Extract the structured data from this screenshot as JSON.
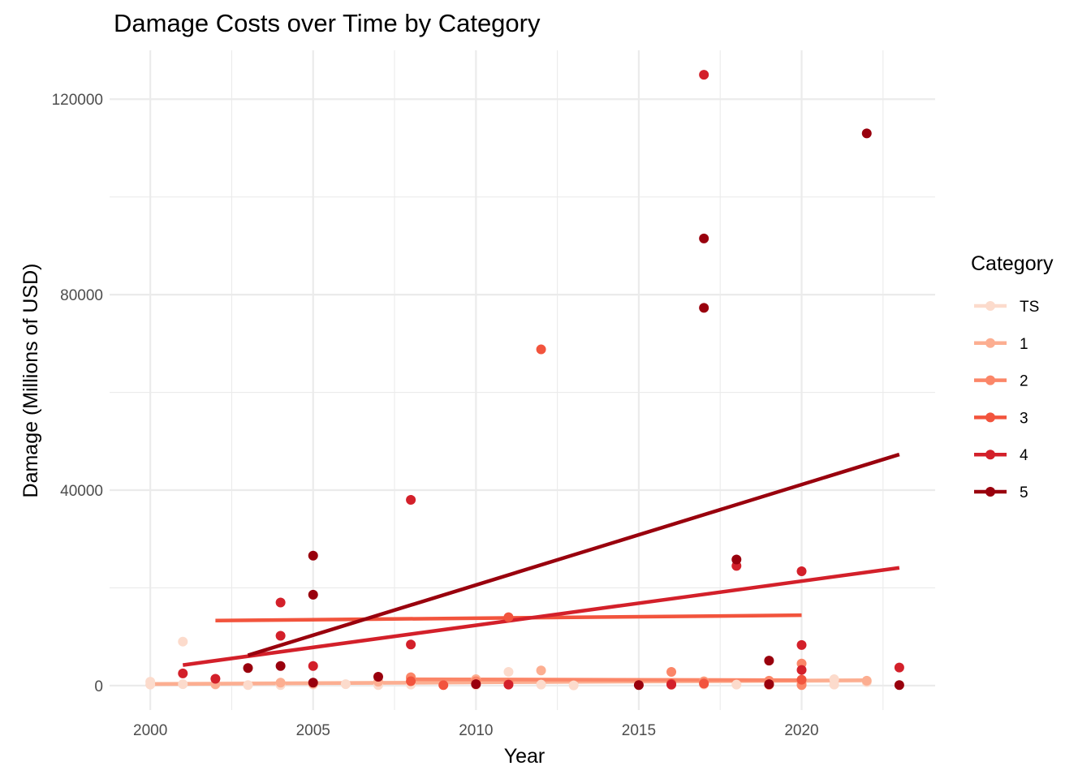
{
  "chart_data": {
    "type": "scatter",
    "title": "Damage Costs over Time by Category",
    "xlabel": "Year",
    "ylabel": "Damage (Millions of USD)",
    "xlim": [
      1998.75,
      2024.1
    ],
    "ylim": [
      -5000,
      130000
    ],
    "x_ticks": [
      2000,
      2005,
      2010,
      2015,
      2020
    ],
    "y_ticks": [
      0,
      40000,
      80000,
      120000
    ],
    "x_tick_labels": [
      "2000",
      "2005",
      "2010",
      "2015",
      "2020"
    ],
    "y_tick_labels": [
      "0",
      "40000",
      "80000",
      "120000"
    ],
    "grid": true,
    "legend_title": "Category",
    "legend_position": "right",
    "series": [
      {
        "name": "TS",
        "color": "#fcdbcc",
        "points": [
          [
            2000,
            800
          ],
          [
            2000,
            200
          ],
          [
            2001,
            9000
          ],
          [
            2001,
            300
          ],
          [
            2002,
            200
          ],
          [
            2003,
            100
          ],
          [
            2004,
            100
          ],
          [
            2005,
            200
          ],
          [
            2006,
            300
          ],
          [
            2007,
            100
          ],
          [
            2008,
            200
          ],
          [
            2009,
            100
          ],
          [
            2010,
            100
          ],
          [
            2011,
            2800
          ],
          [
            2011,
            200
          ],
          [
            2012,
            200
          ],
          [
            2013,
            50
          ],
          [
            2016,
            100
          ],
          [
            2017,
            200
          ],
          [
            2018,
            200
          ],
          [
            2019,
            100
          ],
          [
            2020,
            300
          ],
          [
            2021,
            1300
          ],
          [
            2021,
            200
          ],
          [
            2022,
            700
          ]
        ],
        "trend": [
          [
            2000,
            400
          ],
          [
            2022,
            1000
          ]
        ]
      },
      {
        "name": "1",
        "color": "#fcae91",
        "points": [
          [
            2002,
            300
          ],
          [
            2004,
            600
          ],
          [
            2005,
            400
          ],
          [
            2007,
            800
          ],
          [
            2008,
            1500
          ],
          [
            2010,
            1300
          ],
          [
            2012,
            3100
          ],
          [
            2017,
            900
          ],
          [
            2019,
            800
          ],
          [
            2020,
            500
          ],
          [
            2022,
            1000
          ]
        ],
        "trend": [
          [
            2000,
            300
          ],
          [
            2022,
            1100
          ]
        ]
      },
      {
        "name": "2",
        "color": "#fb8668",
        "points": [
          [
            2008,
            1700
          ],
          [
            2010,
            900
          ],
          [
            2011,
            600
          ],
          [
            2016,
            2800
          ],
          [
            2017,
            700
          ],
          [
            2019,
            1000
          ],
          [
            2020,
            4500
          ],
          [
            2020,
            100
          ]
        ],
        "trend": [
          [
            2008,
            1300
          ],
          [
            2020,
            1100
          ]
        ]
      },
      {
        "name": "3",
        "color": "#f2543d",
        "points": [
          [
            2008,
            900
          ],
          [
            2009,
            100
          ],
          [
            2011,
            14000
          ],
          [
            2012,
            68800
          ],
          [
            2016,
            400
          ],
          [
            2017,
            400
          ],
          [
            2019,
            200
          ],
          [
            2020,
            1200
          ]
        ],
        "trend": [
          [
            2002,
            13300
          ],
          [
            2020,
            14400
          ]
        ]
      },
      {
        "name": "4",
        "color": "#d3202a",
        "points": [
          [
            2001,
            2500
          ],
          [
            2002,
            1400
          ],
          [
            2004,
            17000
          ],
          [
            2004,
            10200
          ],
          [
            2005,
            4000
          ],
          [
            2008,
            38000
          ],
          [
            2008,
            8400
          ],
          [
            2011,
            200
          ],
          [
            2016,
            200
          ],
          [
            2017,
            125000
          ],
          [
            2018,
            24500
          ],
          [
            2020,
            23400
          ],
          [
            2020,
            8300
          ],
          [
            2020,
            3200
          ],
          [
            2023,
            3700
          ]
        ],
        "trend": [
          [
            2001,
            4200
          ],
          [
            2023,
            24100
          ]
        ]
      },
      {
        "name": "5",
        "color": "#99000d",
        "points": [
          [
            2003,
            3600
          ],
          [
            2004,
            4000
          ],
          [
            2005,
            26600
          ],
          [
            2005,
            18600
          ],
          [
            2005,
            600
          ],
          [
            2007,
            1800
          ],
          [
            2010,
            300
          ],
          [
            2015,
            100
          ],
          [
            2017,
            91500
          ],
          [
            2017,
            77300
          ],
          [
            2018,
            25800
          ],
          [
            2019,
            5100
          ],
          [
            2019,
            300
          ],
          [
            2022,
            113000
          ],
          [
            2023,
            100
          ]
        ],
        "trend": [
          [
            2003,
            6200
          ],
          [
            2023,
            47300
          ]
        ]
      }
    ]
  }
}
